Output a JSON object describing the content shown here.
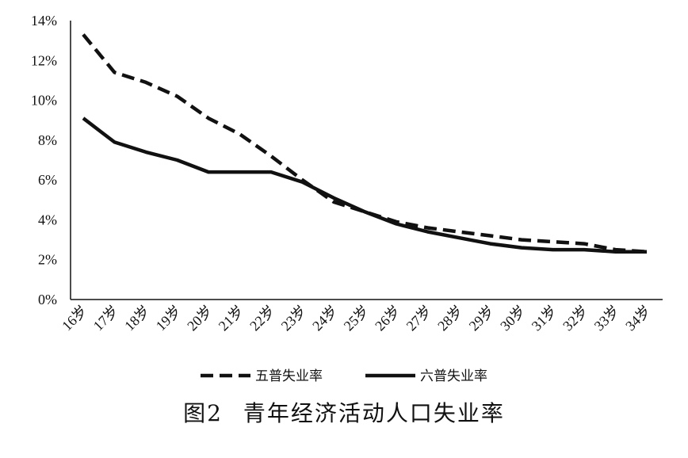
{
  "chart_data": {
    "type": "line",
    "categories": [
      "16岁",
      "17岁",
      "18岁",
      "19岁",
      "20岁",
      "21岁",
      "22岁",
      "23岁",
      "24岁",
      "25岁",
      "26岁",
      "27岁",
      "28岁",
      "29岁",
      "30岁",
      "31岁",
      "32岁",
      "33岁",
      "34岁"
    ],
    "series": [
      {
        "name": "五普失业率",
        "style": "dashed",
        "color": "#111111",
        "values": [
          13.3,
          11.4,
          10.9,
          10.2,
          9.1,
          8.3,
          7.2,
          6.0,
          4.9,
          4.4,
          3.9,
          3.6,
          3.4,
          3.2,
          3.0,
          2.9,
          2.8,
          2.5,
          2.4
        ]
      },
      {
        "name": "六普失业率",
        "style": "solid",
        "color": "#111111",
        "values": [
          9.1,
          7.9,
          7.4,
          7.0,
          6.4,
          6.4,
          6.4,
          5.9,
          5.1,
          4.4,
          3.8,
          3.4,
          3.1,
          2.8,
          2.6,
          2.5,
          2.5,
          2.4,
          2.4
        ]
      }
    ],
    "yticks": [
      "0%",
      "2%",
      "4%",
      "6%",
      "8%",
      "10%",
      "12%",
      "14%"
    ],
    "ylim": [
      0,
      14
    ],
    "grid": false,
    "legend_position": "bottom"
  },
  "caption": {
    "number": "图2",
    "text": "青年经济活动人口失业率"
  }
}
